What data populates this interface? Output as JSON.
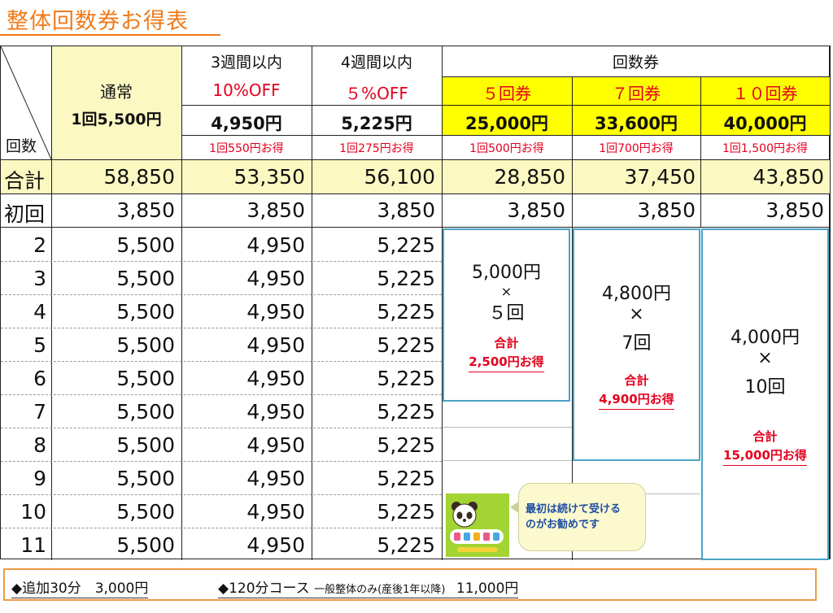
{
  "title": "整体回数券お得表",
  "corner": {
    "label": "回数"
  },
  "columns": [
    {
      "id": "normal",
      "head": "通常",
      "price": "1回5,500円"
    },
    {
      "id": "w3",
      "head": "3週間以内",
      "discount": "10%OFF",
      "price": "4,950円",
      "saving": "1回550円お得"
    },
    {
      "id": "w4",
      "head": "4週間以内",
      "discount": "５%OFF",
      "price": "5,225円",
      "saving": "1回275円お得"
    },
    {
      "id": "t5",
      "group": "回数券",
      "head": "５回券",
      "price": "25,000円",
      "saving": "1回500円お得"
    },
    {
      "id": "t7",
      "head": "７回券",
      "price": "33,600円",
      "saving": "1回700円お得"
    },
    {
      "id": "t10",
      "head": "１０回券",
      "price": "40,000円",
      "saving": "1回1,500円お得"
    }
  ],
  "total_row": {
    "label": "合計",
    "values": [
      "58,850",
      "53,350",
      "56,100",
      "28,850",
      "37,450",
      "43,850"
    ]
  },
  "first_row": {
    "label": "初回",
    "values": [
      "3,850",
      "3,850",
      "3,850",
      "3,850",
      "3,850",
      "3,850"
    ]
  },
  "rows": [
    {
      "label": "2",
      "values": [
        "5,500",
        "4,950",
        "5,225"
      ]
    },
    {
      "label": "3",
      "values": [
        "5,500",
        "4,950",
        "5,225"
      ]
    },
    {
      "label": "4",
      "values": [
        "5,500",
        "4,950",
        "5,225"
      ]
    },
    {
      "label": "5",
      "values": [
        "5,500",
        "4,950",
        "5,225"
      ]
    },
    {
      "label": "6",
      "values": [
        "5,500",
        "4,950",
        "5,225"
      ]
    },
    {
      "label": "7",
      "values": [
        "5,500",
        "4,950",
        "5,225"
      ]
    },
    {
      "label": "8",
      "values": [
        "5,500",
        "4,950",
        "5,225"
      ]
    },
    {
      "label": "9",
      "values": [
        "5,500",
        "4,950",
        "5,225"
      ]
    },
    {
      "label": "10",
      "values": [
        "5,500",
        "4,950",
        "5,225"
      ]
    },
    {
      "label": "11",
      "values": [
        "5,500",
        "4,950",
        "5,225"
      ]
    }
  ],
  "packages": [
    {
      "unit": "5,000円",
      "times": "×",
      "count": "５回",
      "sum_label": "合計",
      "sum": "2,500円お得"
    },
    {
      "unit": "4,800円",
      "times": "×",
      "count": "7回",
      "sum_label": "合計",
      "sum": "4,900円お得"
    },
    {
      "unit": "4,000円",
      "times": "×",
      "count": "10回",
      "sum_label": "合計",
      "sum": "15,000円お得"
    }
  ],
  "bubble": {
    "line1": "最初は続けて受ける",
    "line2": "のがお勧めです"
  },
  "footer": {
    "item1": "◆追加30分　3,000円",
    "item2_main": "◆120分コース",
    "item2_note": "一般整体のみ(産後1年以降)",
    "item2_price": "11,000円"
  },
  "colors": {
    "title": "#ef7a1a",
    "header_yellow": "#ffff00",
    "pale_yellow": "#fbf8c2",
    "package_border": "#4aa3c6",
    "red": "#e4001e",
    "bubble_text": "#1f4ea3"
  }
}
